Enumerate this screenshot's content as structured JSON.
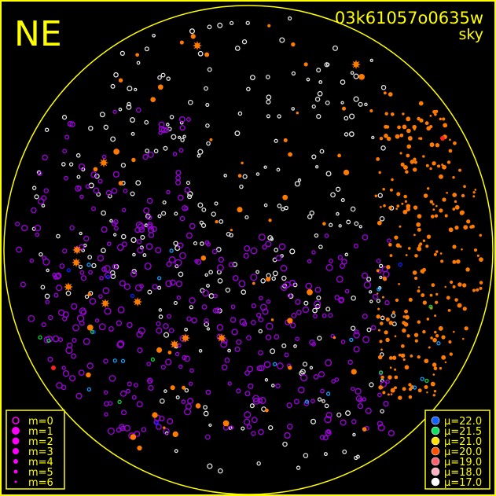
{
  "chart_data": {
    "type": "scatter",
    "title": "03k61057o0635w",
    "subtitle": "sky",
    "direction_label": "NE",
    "frame_color": "#ffff00",
    "magnitude_legend": {
      "marker_color": "#ff00ff",
      "entries": [
        "m=0",
        "m=1",
        "m=2",
        "m=3",
        "m=4",
        "m=5",
        "m=6"
      ]
    },
    "mu_legend": {
      "entries": [
        {
          "label": "μ=22.0",
          "color": "#1060ff"
        },
        {
          "label": "μ=21.5",
          "color": "#10e060"
        },
        {
          "label": "μ=21.0",
          "color": "#ffe000"
        },
        {
          "label": "μ=20.0",
          "color": "#ff5000"
        },
        {
          "label": "μ=19.0",
          "color": "#ff6070"
        },
        {
          "label": "μ=18.0",
          "color": "#ffb0c0"
        },
        {
          "label": "μ=17.0",
          "color": "#ffffff"
        }
      ]
    },
    "star_colors": {
      "white": "#e0e0e0",
      "purple": "#a000e0",
      "orange": "#ff7a00",
      "blue": "#1020ff",
      "cyan": "#10a0ff",
      "green": "#10d040",
      "red": "#ff2020"
    }
  }
}
